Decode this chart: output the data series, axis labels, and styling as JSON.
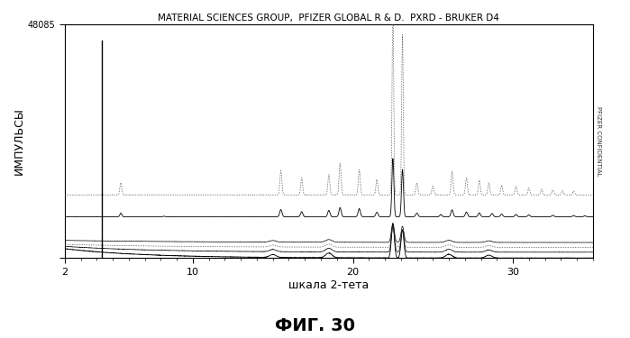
{
  "title": "MATERIAL SCIENCES GROUP,  PFIZER GLOBAL R & D.  PXRD - BRUKER D4",
  "xlabel": "шкала 2-тета",
  "ylabel": "ИМПУЛЬСЫ",
  "fig_label": "ФИГ. 30",
  "right_label": "PFIZER CONFIDENTIAL",
  "xlim": [
    2,
    35
  ],
  "ylim": [
    0,
    48085
  ],
  "ytick_top": "48085",
  "xticks": [
    2,
    10,
    20,
    30
  ],
  "bg_color": "#ffffff"
}
